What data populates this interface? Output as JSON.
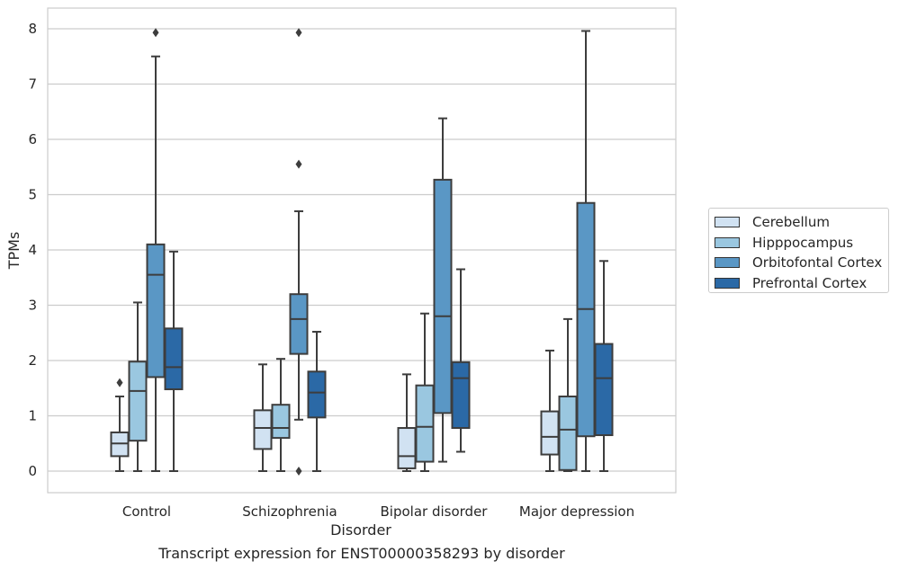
{
  "chart_data": {
    "type": "boxplot",
    "title": "",
    "caption": "Transcript expression for ENST00000358293 by disorder",
    "xlabel": "Disorder",
    "ylabel": "TPMs",
    "ylim": [
      -0.4,
      8.4
    ],
    "yticks": [
      0,
      1,
      2,
      3,
      4,
      5,
      6,
      7,
      8
    ],
    "grid": "horizontal",
    "legend_position": "right",
    "categories": [
      "Control",
      "Schizophrenia",
      "Bipolar disorder",
      "Major depression"
    ],
    "series": [
      {
        "name": "Cerebellum",
        "color": "#d1e2f2",
        "boxes": [
          {
            "whislo": 0.0,
            "q1": 0.27,
            "med": 0.5,
            "q3": 0.7,
            "whishi": 1.35,
            "fliers": [
              1.6
            ]
          },
          {
            "whislo": 0.0,
            "q1": 0.4,
            "med": 0.78,
            "q3": 1.1,
            "whishi": 1.93,
            "fliers": []
          },
          {
            "whislo": 0.0,
            "q1": 0.05,
            "med": 0.27,
            "q3": 0.78,
            "whishi": 1.75,
            "fliers": []
          },
          {
            "whislo": 0.0,
            "q1": 0.3,
            "med": 0.62,
            "q3": 1.08,
            "whishi": 2.18,
            "fliers": []
          }
        ]
      },
      {
        "name": "Hipppocampus",
        "color": "#9ac7e0",
        "boxes": [
          {
            "whislo": 0.0,
            "q1": 0.55,
            "med": 1.45,
            "q3": 1.98,
            "whishi": 3.05,
            "fliers": []
          },
          {
            "whislo": 0.0,
            "q1": 0.6,
            "med": 0.78,
            "q3": 1.2,
            "whishi": 2.03,
            "fliers": []
          },
          {
            "whislo": 0.0,
            "q1": 0.17,
            "med": 0.8,
            "q3": 1.55,
            "whishi": 2.85,
            "fliers": []
          },
          {
            "whislo": 0.0,
            "q1": 0.02,
            "med": 0.75,
            "q3": 1.35,
            "whishi": 2.75,
            "fliers": []
          }
        ]
      },
      {
        "name": "Orbitofontal Cortex",
        "color": "#5a97c5",
        "boxes": [
          {
            "whislo": 0.0,
            "q1": 1.7,
            "med": 3.55,
            "q3": 4.1,
            "whishi": 7.5,
            "fliers": [
              7.93
            ]
          },
          {
            "whislo": 0.93,
            "q1": 2.12,
            "med": 2.75,
            "q3": 3.2,
            "whishi": 4.7,
            "fliers": [
              7.93,
              5.55,
              0.0
            ]
          },
          {
            "whislo": 0.17,
            "q1": 1.05,
            "med": 2.8,
            "q3": 5.27,
            "whishi": 6.38,
            "fliers": []
          },
          {
            "whislo": 0.0,
            "q1": 0.63,
            "med": 2.93,
            "q3": 4.85,
            "whishi": 7.96,
            "fliers": []
          }
        ]
      },
      {
        "name": "Prefrontal Cortex",
        "color": "#2b69a6",
        "boxes": [
          {
            "whislo": 0.0,
            "q1": 1.48,
            "med": 1.88,
            "q3": 2.58,
            "whishi": 3.97,
            "fliers": []
          },
          {
            "whislo": 0.0,
            "q1": 0.97,
            "med": 1.42,
            "q3": 1.8,
            "whishi": 2.52,
            "fliers": []
          },
          {
            "whislo": 0.35,
            "q1": 0.78,
            "med": 1.68,
            "q3": 1.97,
            "whishi": 3.65,
            "fliers": []
          },
          {
            "whislo": 0.0,
            "q1": 0.65,
            "med": 1.68,
            "q3": 2.3,
            "whishi": 3.8,
            "fliers": []
          }
        ]
      }
    ]
  }
}
